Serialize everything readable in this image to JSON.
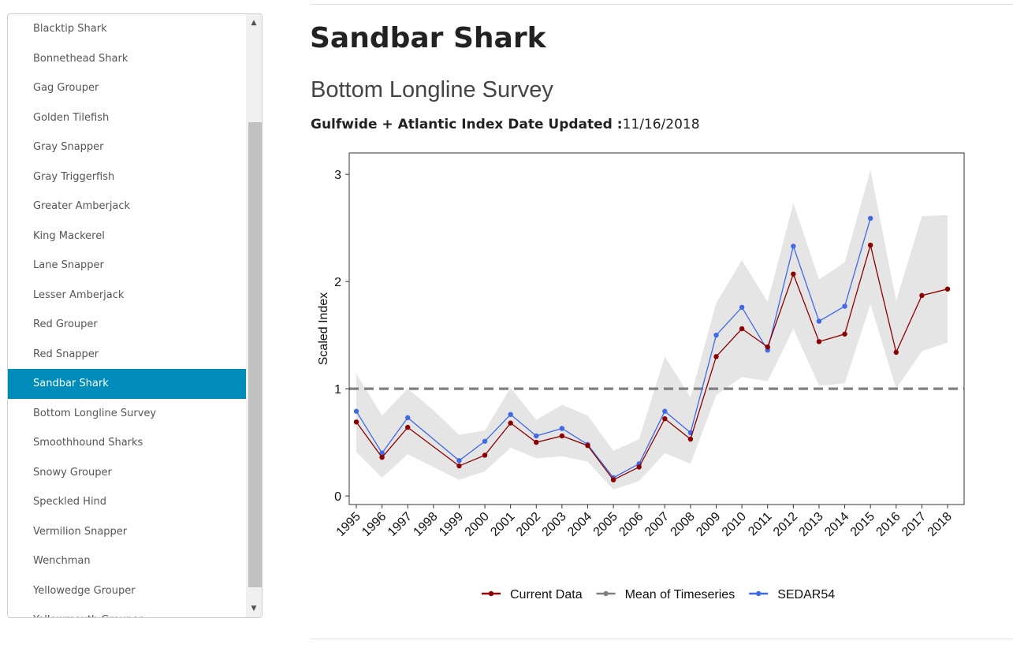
{
  "sidebar": {
    "items": [
      {
        "label": "Blacktip Shark"
      },
      {
        "label": "Bonnethead Shark"
      },
      {
        "label": "Gag Grouper"
      },
      {
        "label": "Golden Tilefish"
      },
      {
        "label": "Gray Snapper"
      },
      {
        "label": "Gray Triggerfish"
      },
      {
        "label": "Greater Amberjack"
      },
      {
        "label": "King Mackerel"
      },
      {
        "label": "Lane Snapper"
      },
      {
        "label": "Lesser Amberjack"
      },
      {
        "label": "Red Grouper"
      },
      {
        "label": "Red Snapper"
      },
      {
        "label": "Sandbar Shark"
      },
      {
        "label": "Bottom Longline Survey"
      },
      {
        "label": "Smoothhound Sharks"
      },
      {
        "label": "Snowy Grouper"
      },
      {
        "label": "Speckled Hind"
      },
      {
        "label": "Vermilion Snapper"
      },
      {
        "label": "Wenchman"
      },
      {
        "label": "Yellowedge Grouper"
      },
      {
        "label": "Yellowmouth Grouper"
      }
    ],
    "selected_label": "Sandbar Shark",
    "selected_color": "#008cba",
    "scroll_up_icon": "▲",
    "scroll_down_icon": "▼"
  },
  "main": {
    "title": "Sandbar Shark",
    "survey": "Bottom Longline Survey",
    "update_label": "Gulfwide + Atlantic Index Date Updated :",
    "update_date": "11/16/2018"
  },
  "chart_data": {
    "type": "line",
    "ylabel": "Scaled Index",
    "xlabel": "",
    "ylim": [
      -0.08,
      3.2
    ],
    "yticks": [
      0,
      1,
      2,
      3
    ],
    "x": [
      1995,
      1996,
      1997,
      1998,
      1999,
      2000,
      2001,
      2002,
      2003,
      2004,
      2005,
      2006,
      2007,
      2008,
      2009,
      2010,
      2011,
      2012,
      2013,
      2014,
      2015,
      2016,
      2017,
      2018
    ],
    "series": [
      {
        "name": "Current Data",
        "color": "#8b0000",
        "values": [
          0.69,
          0.36,
          0.64,
          null,
          0.28,
          0.38,
          0.68,
          0.5,
          0.56,
          0.47,
          0.15,
          0.27,
          0.72,
          0.53,
          1.3,
          1.56,
          1.39,
          2.07,
          1.44,
          1.51,
          2.34,
          1.34,
          1.87,
          1.93
        ]
      },
      {
        "name": "Mean of Timeseries",
        "color": "#808080",
        "constant": 1.0
      },
      {
        "name": "SEDAR54",
        "color": "#4169e1",
        "values": [
          0.79,
          0.4,
          0.73,
          null,
          0.33,
          0.51,
          0.76,
          0.56,
          0.63,
          0.48,
          0.17,
          0.3,
          0.79,
          0.59,
          1.5,
          1.76,
          1.36,
          2.33,
          1.63,
          1.77,
          2.59,
          null,
          null,
          null
        ]
      }
    ],
    "confidence_band": {
      "color": "#e5e5e5",
      "lower": [
        0.41,
        0.17,
        0.39,
        0.27,
        0.15,
        0.23,
        0.45,
        0.35,
        0.37,
        0.32,
        0.06,
        0.14,
        0.4,
        0.3,
        0.94,
        1.11,
        1.07,
        1.56,
        1.03,
        1.05,
        1.79,
        1.0,
        1.35,
        1.43
      ],
      "upper": [
        1.14,
        0.75,
        1.0,
        0.8,
        0.57,
        0.61,
        1.01,
        0.71,
        0.85,
        0.75,
        0.42,
        0.53,
        1.3,
        0.92,
        1.8,
        2.2,
        1.81,
        2.73,
        2.02,
        2.18,
        3.04,
        1.82,
        2.61,
        2.62
      ]
    },
    "legend_position": "bottom",
    "grid": false
  }
}
